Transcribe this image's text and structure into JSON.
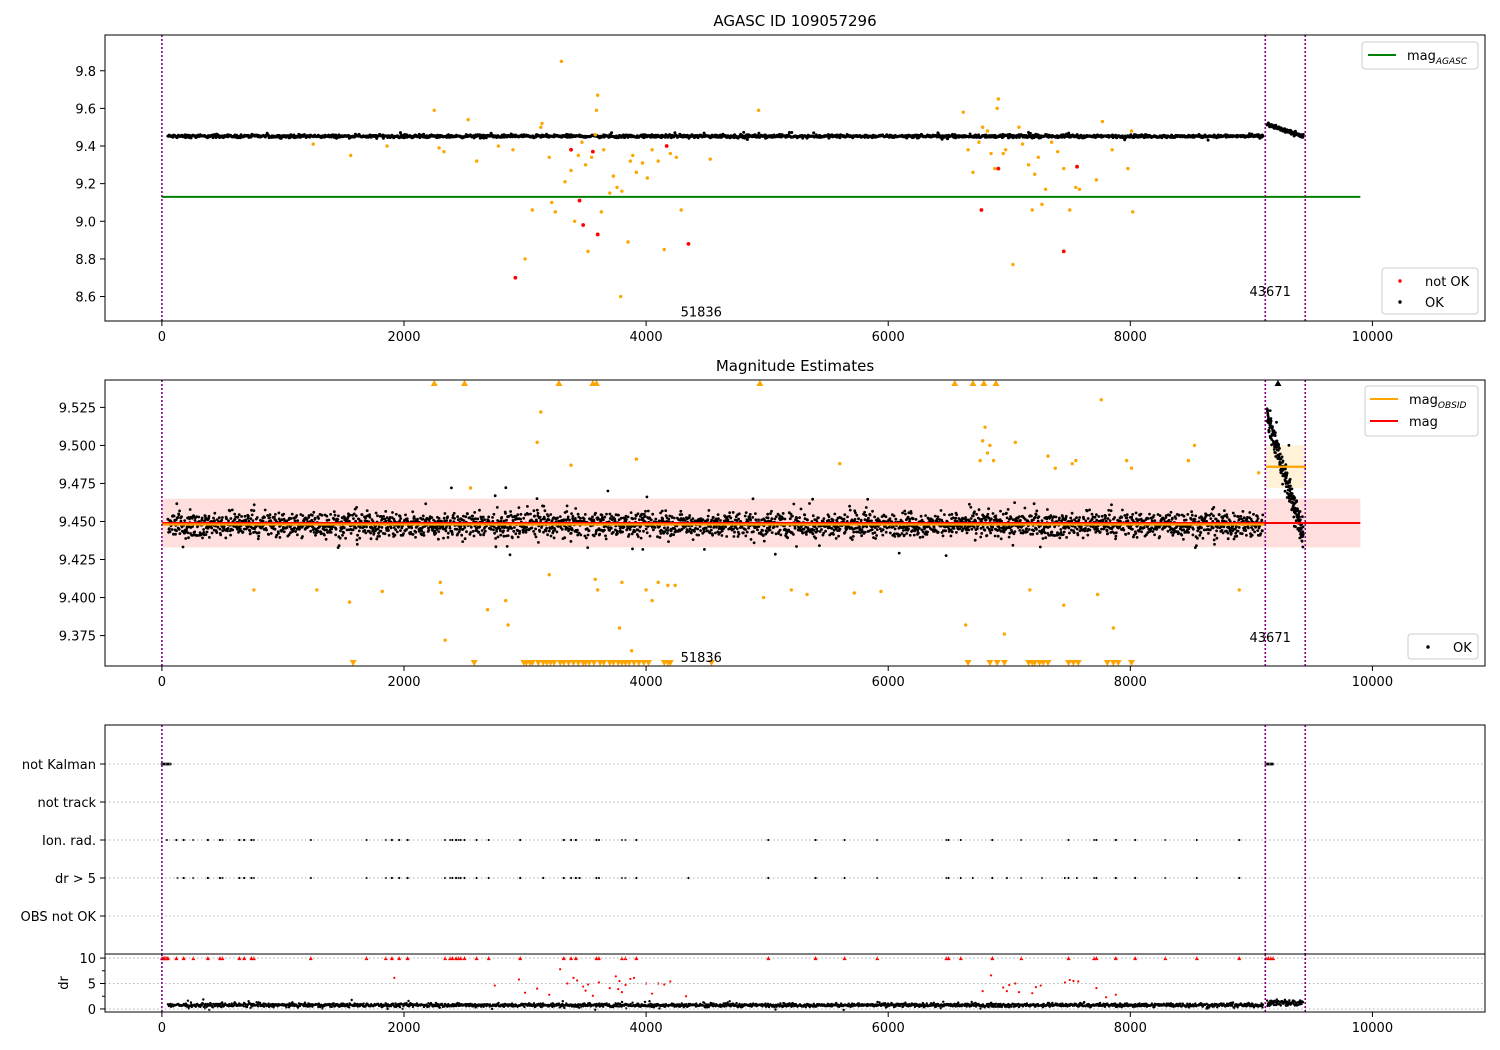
{
  "chart_data": [
    {
      "type": "scatter",
      "title": "AGASC ID 109057296",
      "xlim": [
        -470,
        10930
      ],
      "ylim": [
        8.47,
        9.99
      ],
      "yticks": [
        8.6,
        8.8,
        9.0,
        9.2,
        9.4,
        9.6,
        9.8
      ],
      "ytick_labels": [
        "8.6",
        "8.8",
        "9.0",
        "9.2",
        "9.4",
        "9.6",
        "9.8"
      ],
      "xticks": [
        0,
        2000,
        4000,
        6000,
        8000,
        10000
      ],
      "xtick_labels": [
        "0",
        "2000",
        "4000",
        "6000",
        "8000",
        "10000"
      ],
      "mag_agasc": 9.13,
      "mag_agasc_xrange": [
        0,
        9900
      ],
      "vlines": [
        0,
        9115,
        9445
      ],
      "obsid_labels": [
        {
          "x": 4450,
          "y": 8.52,
          "text": "51836"
        },
        {
          "x": 9150,
          "y": 8.63,
          "text": "43671"
        }
      ],
      "ok_band": {
        "x_start": 50,
        "x_end": 9100,
        "center": 9.452,
        "spread": 0.012,
        "count": 1800
      },
      "ok_band_late": {
        "x_start": 9130,
        "x_end": 9430,
        "start": 9.515,
        "end": 9.45,
        "spread": 0.012,
        "count": 140
      },
      "series_orange": [
        [
          2250,
          9.59
        ],
        [
          2530,
          9.54
        ],
        [
          2290,
          9.39
        ],
        [
          2330,
          9.37
        ],
        [
          2600,
          9.32
        ],
        [
          2780,
          9.4
        ],
        [
          2900,
          9.38
        ],
        [
          3000,
          8.8
        ],
        [
          3060,
          9.06
        ],
        [
          3130,
          9.5
        ],
        [
          3140,
          9.52
        ],
        [
          3200,
          9.34
        ],
        [
          3220,
          9.1
        ],
        [
          3250,
          9.05
        ],
        [
          3300,
          9.85
        ],
        [
          3330,
          9.21
        ],
        [
          3380,
          9.27
        ],
        [
          3410,
          9.0
        ],
        [
          3440,
          9.35
        ],
        [
          3470,
          9.42
        ],
        [
          3500,
          9.3
        ],
        [
          3520,
          8.84
        ],
        [
          3550,
          9.34
        ],
        [
          3580,
          9.46
        ],
        [
          3590,
          9.59
        ],
        [
          3600,
          9.67
        ],
        [
          3630,
          9.05
        ],
        [
          3650,
          9.38
        ],
        [
          3700,
          9.15
        ],
        [
          3730,
          9.24
        ],
        [
          3760,
          9.18
        ],
        [
          3790,
          8.6
        ],
        [
          3800,
          9.16
        ],
        [
          3850,
          8.89
        ],
        [
          3870,
          9.32
        ],
        [
          3890,
          9.35
        ],
        [
          3920,
          9.26
        ],
        [
          3970,
          9.31
        ],
        [
          4010,
          9.23
        ],
        [
          4050,
          9.38
        ],
        [
          4100,
          9.32
        ],
        [
          4150,
          8.85
        ],
        [
          4200,
          9.36
        ],
        [
          4250,
          9.34
        ],
        [
          4290,
          9.06
        ],
        [
          4530,
          9.33
        ],
        [
          4930,
          9.59
        ],
        [
          1250,
          9.41
        ],
        [
          1560,
          9.35
        ],
        [
          1860,
          9.4
        ],
        [
          6620,
          9.58
        ],
        [
          6660,
          9.38
        ],
        [
          6700,
          9.26
        ],
        [
          6750,
          9.42
        ],
        [
          6780,
          9.5
        ],
        [
          6820,
          9.48
        ],
        [
          6850,
          9.36
        ],
        [
          6880,
          9.28
        ],
        [
          6900,
          9.6
        ],
        [
          6910,
          9.65
        ],
        [
          6950,
          9.36
        ],
        [
          6970,
          9.38
        ],
        [
          7030,
          8.77
        ],
        [
          7080,
          9.5
        ],
        [
          7110,
          9.41
        ],
        [
          7160,
          9.3
        ],
        [
          7190,
          9.06
        ],
        [
          7210,
          9.25
        ],
        [
          7240,
          9.34
        ],
        [
          7270,
          9.09
        ],
        [
          7300,
          9.17
        ],
        [
          7350,
          9.42
        ],
        [
          7400,
          9.37
        ],
        [
          7450,
          9.28
        ],
        [
          7500,
          9.06
        ],
        [
          7550,
          9.18
        ],
        [
          7580,
          9.17
        ],
        [
          7720,
          9.22
        ],
        [
          7770,
          9.53
        ],
        [
          7850,
          9.38
        ],
        [
          7980,
          9.28
        ],
        [
          8010,
          9.48
        ],
        [
          8020,
          9.05
        ]
      ],
      "series_red": [
        [
          2920,
          8.7
        ],
        [
          3380,
          9.38
        ],
        [
          3450,
          9.11
        ],
        [
          3480,
          8.98
        ],
        [
          3560,
          9.37
        ],
        [
          3600,
          8.93
        ],
        [
          4170,
          9.4
        ],
        [
          4350,
          8.88
        ],
        [
          6770,
          9.06
        ],
        [
          6910,
          9.28
        ],
        [
          7450,
          8.84
        ],
        [
          7560,
          9.29
        ]
      ],
      "legend_top": {
        "label": "mag",
        "subscript": "AGASC",
        "color": "#008000"
      },
      "legend_bottom": [
        {
          "label": "not OK",
          "color": "#ff0000"
        },
        {
          "label": "OK",
          "color": "#000000"
        }
      ]
    },
    {
      "type": "scatter",
      "title": "Magnitude Estimates",
      "xlim": [
        -470,
        10930
      ],
      "ylim": [
        9.355,
        9.543
      ],
      "yticks": [
        9.375,
        9.4,
        9.425,
        9.45,
        9.475,
        9.5,
        9.525
      ],
      "ytick_labels": [
        "9.375",
        "9.400",
        "9.425",
        "9.450",
        "9.475",
        "9.500",
        "9.525"
      ],
      "xticks": [
        0,
        2000,
        4000,
        6000,
        8000,
        10000
      ],
      "xtick_labels": [
        "0",
        "2000",
        "4000",
        "6000",
        "8000",
        "10000"
      ],
      "mag": 9.449,
      "mag_band": [
        9.433,
        9.465
      ],
      "mag_xrange": [
        0,
        9900
      ],
      "mag_obsid_segments": [
        {
          "x0": 0,
          "x1": 9110,
          "y": 9.448
        },
        {
          "x0": 9120,
          "x1": 9450,
          "y": 9.486
        }
      ],
      "obsid_band": {
        "x0": 9120,
        "x1": 9450,
        "y0": 9.472,
        "y1": 9.5
      },
      "vlines": [
        0,
        9115,
        9445
      ],
      "obsid_labels": [
        {
          "x": 4450,
          "y": 9.361,
          "text": "51836"
        },
        {
          "x": 9150,
          "y": 9.374,
          "text": "43671"
        }
      ],
      "ok_band": {
        "x_start": 50,
        "x_end": 9100,
        "center": 9.448,
        "spread": 0.012,
        "count": 3200
      },
      "ok_band_late": {
        "x_start": 9130,
        "x_end": 9430,
        "start": 9.52,
        "end": 9.44,
        "spread": 0.014,
        "count": 220
      },
      "orange_points": [
        [
          2300,
          9.41
        ],
        [
          2310,
          9.403
        ],
        [
          2340,
          9.372
        ],
        [
          2690,
          9.392
        ],
        [
          2840,
          9.398
        ],
        [
          2860,
          9.382
        ],
        [
          3100,
          9.502
        ],
        [
          3130,
          9.522
        ],
        [
          3200,
          9.415
        ],
        [
          3380,
          9.487
        ],
        [
          3580,
          9.412
        ],
        [
          3600,
          9.405
        ],
        [
          3780,
          9.38
        ],
        [
          3800,
          9.41
        ],
        [
          3880,
          9.365
        ],
        [
          3920,
          9.491
        ],
        [
          4000,
          9.405
        ],
        [
          4050,
          9.398
        ],
        [
          4100,
          9.41
        ],
        [
          4180,
          9.408
        ],
        [
          4240,
          9.408
        ],
        [
          4970,
          9.4
        ],
        [
          5200,
          9.405
        ],
        [
          5330,
          9.402
        ],
        [
          5600,
          9.488
        ],
        [
          5720,
          9.403
        ],
        [
          5940,
          9.404
        ],
        [
          6640,
          9.382
        ],
        [
          6760,
          9.49
        ],
        [
          6780,
          9.503
        ],
        [
          6800,
          9.512
        ],
        [
          6820,
          9.495
        ],
        [
          6840,
          9.5
        ],
        [
          6870,
          9.49
        ],
        [
          6960,
          9.376
        ],
        [
          7050,
          9.502
        ],
        [
          7170,
          9.405
        ],
        [
          7320,
          9.493
        ],
        [
          7380,
          9.485
        ],
        [
          7450,
          9.395
        ],
        [
          7520,
          9.488
        ],
        [
          7550,
          9.49
        ],
        [
          7730,
          9.402
        ],
        [
          7760,
          9.53
        ],
        [
          7860,
          9.38
        ],
        [
          7970,
          9.49
        ],
        [
          8010,
          9.485
        ],
        [
          8480,
          9.49
        ],
        [
          8530,
          9.5
        ],
        [
          8900,
          9.405
        ],
        [
          9060,
          9.482
        ],
        [
          1550,
          9.397
        ],
        [
          1280,
          9.405
        ],
        [
          1820,
          9.404
        ],
        [
          760,
          9.405
        ],
        [
          2550,
          9.472
        ]
      ],
      "clip_top_x": [
        2250,
        2500,
        3280,
        3560,
        3590,
        4940,
        6550,
        6700,
        6790,
        6890
      ],
      "clip_bottom_x": [
        1580,
        2580,
        2990,
        3010,
        3040,
        3060,
        3110,
        3150,
        3180,
        3210,
        3240,
        3290,
        3320,
        3360,
        3400,
        3440,
        3480,
        3500,
        3530,
        3570,
        3620,
        3650,
        3700,
        3730,
        3770,
        3800,
        3830,
        3860,
        3900,
        3940,
        3980,
        4020,
        4150,
        4180,
        4200,
        4540,
        6660,
        6840,
        6900,
        6960,
        7160,
        7190,
        7210,
        7250,
        7280,
        7320,
        7490,
        7530,
        7570,
        7810,
        7860,
        7900,
        8010
      ],
      "legend_top": [
        {
          "label": "mag",
          "subscript": "OBSID",
          "color": "#ffa500"
        },
        {
          "label": "mag",
          "subscript": "",
          "color": "#ff0000"
        }
      ],
      "legend_bottom": [
        {
          "label": "OK",
          "color": "#000000"
        }
      ]
    },
    {
      "type": "scatter",
      "xlim": [
        -470,
        10930
      ],
      "categories": [
        "not Kalman",
        "not track",
        "Ion. rad.",
        "dr > 5",
        "OBS not OK"
      ],
      "xticks": [
        0,
        2000,
        4000,
        6000,
        8000,
        10000
      ],
      "xtick_labels": [
        "0",
        "2000",
        "4000",
        "6000",
        "8000",
        "10000"
      ],
      "vlines": [
        0,
        9115,
        9445
      ],
      "not_kalman_segments": [
        [
          0,
          70
        ],
        [
          9120,
          9180
        ]
      ],
      "ion_rad_x": [
        40,
        120,
        180,
        260,
        380,
        480,
        500,
        640,
        680,
        740,
        760,
        1230,
        1690,
        1850,
        1900,
        1960,
        2030,
        2340,
        2380,
        2400,
        2430,
        2450,
        2470,
        2500,
        2600,
        2700,
        2960,
        3320,
        3380,
        3420,
        3590,
        3610,
        3800,
        3830,
        3920,
        5010,
        5400,
        5640,
        5910,
        6480,
        6500,
        6600,
        6860,
        7100,
        7490,
        7700,
        7720,
        7880,
        8040,
        8290,
        8550,
        8900
      ],
      "dr_gt5_x": [
        130,
        180,
        260,
        380,
        480,
        500,
        640,
        680,
        740,
        760,
        1230,
        1690,
        1850,
        1900,
        1960,
        2030,
        2340,
        2380,
        2400,
        2430,
        2450,
        2470,
        2500,
        2600,
        2700,
        2960,
        3150,
        3320,
        3380,
        3420,
        3450,
        3590,
        3610,
        3800,
        3830,
        3920,
        4350,
        5010,
        5400,
        5640,
        5910,
        6480,
        6500,
        6600,
        6700,
        6860,
        6980,
        7100,
        7270,
        7460,
        7490,
        7560,
        7700,
        7720,
        7880,
        8040,
        8290,
        8550,
        8900
      ],
      "ylabel": "",
      "sub": {
        "ylabel": "dr",
        "ylim": [
          -0.6,
          10.8
        ],
        "yticks": [
          0,
          5,
          10
        ],
        "ytick_labels": [
          "0",
          "5",
          "10"
        ],
        "red_triangle_x": [
          0,
          10,
          20,
          30,
          40,
          50,
          120,
          180,
          260,
          380,
          480,
          500,
          640,
          680,
          740,
          760,
          1230,
          1690,
          1850,
          1900,
          1960,
          2030,
          2340,
          2380,
          2400,
          2430,
          2450,
          2470,
          2500,
          2600,
          2700,
          2960,
          3320,
          3380,
          3420,
          3590,
          3610,
          3800,
          3830,
          3920,
          5010,
          5400,
          5640,
          5910,
          6480,
          6500,
          6600,
          6860,
          7100,
          7490,
          7700,
          7720,
          7880,
          8040,
          8290,
          8550,
          8900,
          9120,
          9140,
          9160,
          9180
        ],
        "red_points": [
          [
            1920,
            6.1
          ],
          [
            2750,
            4.6
          ],
          [
            2950,
            5.8
          ],
          [
            3000,
            3.2
          ],
          [
            3100,
            4.0
          ],
          [
            3200,
            2.8
          ],
          [
            3290,
            7.8
          ],
          [
            3350,
            5.0
          ],
          [
            3400,
            6.1
          ],
          [
            3430,
            5.6
          ],
          [
            3480,
            4.4
          ],
          [
            3500,
            3.6
          ],
          [
            3520,
            4.8
          ],
          [
            3560,
            2.6
          ],
          [
            3610,
            5.2
          ],
          [
            3700,
            4.1
          ],
          [
            3750,
            6.4
          ],
          [
            3770,
            3.9
          ],
          [
            3780,
            5.5
          ],
          [
            3800,
            3.3
          ],
          [
            3830,
            4.7
          ],
          [
            3870,
            5.9
          ],
          [
            3900,
            6.1
          ],
          [
            4000,
            5.0
          ],
          [
            4050,
            3.0
          ],
          [
            4100,
            5.0
          ],
          [
            4150,
            4.8
          ],
          [
            4200,
            5.4
          ],
          [
            4330,
            2.5
          ],
          [
            6780,
            3.5
          ],
          [
            6850,
            6.6
          ],
          [
            6950,
            4.2
          ],
          [
            6980,
            3.5
          ],
          [
            7000,
            4.7
          ],
          [
            7050,
            5.0
          ],
          [
            7080,
            3.3
          ],
          [
            7190,
            3.1
          ],
          [
            7220,
            4.3
          ],
          [
            7260,
            4.6
          ],
          [
            7460,
            5.2
          ],
          [
            7500,
            5.7
          ],
          [
            7530,
            5.5
          ],
          [
            7570,
            5.4
          ],
          [
            7720,
            4.1
          ],
          [
            7800,
            2.3
          ],
          [
            7880,
            2.8
          ]
        ],
        "black_base": {
          "x_start": 50,
          "x_end": 9100,
          "center": 0.75,
          "spread": 0.55,
          "count": 2200
        },
        "black_late": {
          "x_start": 9130,
          "x_end": 9430,
          "center": 1.2,
          "spread": 0.9,
          "count": 90
        }
      }
    }
  ]
}
